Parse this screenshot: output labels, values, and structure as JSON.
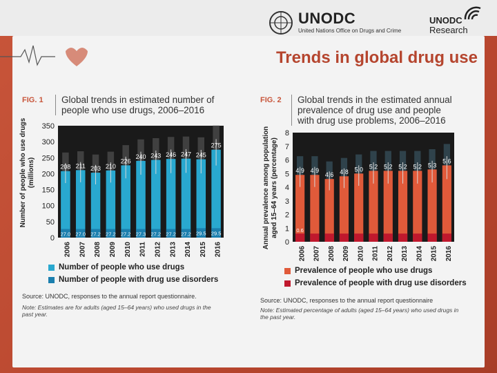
{
  "header": {
    "org_name": "UNODC",
    "org_subtitle": "United Nations Office on Drugs and Crime",
    "research_name": "UNODC",
    "research_sub": "Research"
  },
  "slide_title": "Trends in global drug use",
  "fig1": {
    "label": "FIG. 1",
    "title_line1": "Global trends in estimated number of",
    "title_line2": "people who use drugs, 2006–2016",
    "ylabel_line1": "Number of people who use drugs",
    "ylabel_line2": "(millions)",
    "legend": [
      "Number of people who use drugs",
      "Number of people with drug use disorders"
    ],
    "source": "Source: UNODC, responses to the annual report questionnaire.",
    "note": "Note: Estimates are for adults (aged 15–64 years) who used drugs in the past year."
  },
  "fig2": {
    "label": "FIG. 2",
    "title_line1": "Global trends in the estimated annual",
    "title_line2": "prevalence of drug use and people",
    "title_line3": "with drug use problems, 2006–2016",
    "ylabel_line1": "Annual prevalence among population",
    "ylabel_line2": "aged 15–64 years (percentage)",
    "legend": [
      "Prevalence of people who use drugs",
      "Prevalence of people with drug use disorders"
    ],
    "source": "Source: UNODC, responses to the annual report questionnaire",
    "note": "Note: Estimated percentage of adults (aged 15–64 years) who used drugs in the past year."
  },
  "colors": {
    "fig1_main": "#29a8cf",
    "fig1_disorder": "#1b7fae",
    "fig2_main": "#e05a3a",
    "fig2_disorder": "#c0182d",
    "plot_bg": "#1a1a1a",
    "accent": "#b5452e"
  },
  "chart_data": [
    {
      "type": "bar",
      "categories": [
        "2006",
        "2007",
        "2008",
        "2009",
        "2010",
        "2011",
        "2012",
        "2013",
        "2014",
        "2015",
        "2016"
      ],
      "series": [
        {
          "name": "Number of people who use drugs",
          "values": [
            208,
            211,
            203,
            210,
            226,
            240,
            243,
            246,
            247,
            245,
            275
          ],
          "labels": [
            "208",
            "211",
            "203",
            "210",
            "226",
            "240",
            "243",
            "246",
            "247",
            "245",
            "275"
          ]
        },
        {
          "name": "Number of people with drug use disorders",
          "values": [
            27,
            27,
            27,
            27,
            27,
            27,
            27,
            27,
            27,
            29.5,
            29.5
          ],
          "labels": [
            "27.0",
            "27.0",
            "27.2",
            "27.2",
            "27.2",
            "27.3",
            "27.2",
            "27.2",
            "27.2",
            "29.5",
            "29.5"
          ]
        }
      ],
      "ylim": [
        0,
        350
      ],
      "yticks": [
        0,
        50,
        100,
        150,
        200,
        250,
        300,
        350
      ],
      "xlabel": "",
      "ylabel": "Number of people who use drugs (millions)",
      "grid": false,
      "legend": "bottom"
    },
    {
      "type": "bar",
      "categories": [
        "2006",
        "2007",
        "2008",
        "2009",
        "2010",
        "2011",
        "2012",
        "2013",
        "2014",
        "2015",
        "2016"
      ],
      "series": [
        {
          "name": "Prevalence of people who use drugs",
          "values": [
            4.9,
            4.9,
            4.6,
            4.8,
            5.0,
            5.2,
            5.2,
            5.2,
            5.2,
            5.3,
            5.6
          ],
          "labels": [
            "4.9",
            "4.9",
            "4.6",
            "4.8",
            "5.0",
            "5.2",
            "5.2",
            "5.2",
            "5.2",
            "5.3",
            "5.6"
          ]
        },
        {
          "name": "Prevalence of people with drug use disorders",
          "values": [
            0.6,
            0.6,
            0.6,
            0.6,
            0.6,
            0.6,
            0.6,
            0.6,
            0.6,
            0.6,
            0.6
          ],
          "labels": [
            "0.6",
            "",
            "",
            "",
            "",
            "",
            "",
            "",
            "",
            "",
            ""
          ]
        }
      ],
      "ylim": [
        0,
        8
      ],
      "yticks": [
        0,
        1,
        2,
        3,
        4,
        5,
        6,
        7,
        8
      ],
      "xlabel": "",
      "ylabel": "Annual prevalence among population aged 15–64 years (percentage)",
      "grid": false,
      "legend": "bottom"
    }
  ]
}
